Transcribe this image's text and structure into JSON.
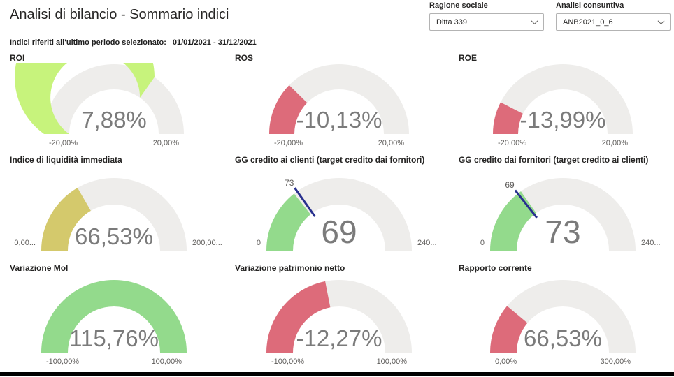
{
  "header": {
    "title": "Analisi di bilancio - Sommario indici",
    "period_label": "Indici riferiti all'ultimo periodo selezionato:",
    "period_value": "01/01/2021 - 31/12/2021"
  },
  "filters": [
    {
      "label": "Ragione sociale",
      "value": "Ditta 339",
      "icon": "chevron-down-icon"
    },
    {
      "label": "Analisi consuntiva",
      "value": "ANB2021_0_6",
      "icon": "chevron-down-icon"
    }
  ],
  "colors": {
    "track": "#eeedeb",
    "lime": "#c7f37c",
    "red": "#dd6b7a",
    "olive": "#d4c96c",
    "green": "#93da8c",
    "target_needle": "#28308e",
    "value_text": "#7b7b7b",
    "axis_text": "#5f5d5b"
  },
  "chart_data": [
    {
      "type": "gauge",
      "title": "ROI",
      "value": 7.88,
      "value_label": "7,88%",
      "min": -20,
      "max": 20,
      "min_label": "-20,00%",
      "max_label": "20,00%",
      "fill_color": "#c7f37c"
    },
    {
      "type": "gauge",
      "title": "ROS",
      "value": -10.13,
      "value_label": "-10,13%",
      "min": -20,
      "max": 20,
      "min_label": "-20,00%",
      "max_label": "20,00%",
      "fill_color": "#dd6b7a"
    },
    {
      "type": "gauge",
      "title": "ROE",
      "value": -13.99,
      "value_label": "-13,99%",
      "min": -20,
      "max": 20,
      "min_label": "-20,00%",
      "max_label": "20,00%",
      "fill_color": "#dd6b7a"
    },
    {
      "type": "gauge",
      "title": "Indice di liquidità immediata",
      "value": 66.53,
      "value_label": "66,53%",
      "min": 0,
      "max": 200,
      "min_label": "0,00...",
      "max_label": "200,00...",
      "fill_color": "#d4c96c"
    },
    {
      "type": "gauge",
      "title": "GG credito ai clienti (target credito dai fornitori)",
      "value": 69,
      "value_label": "69",
      "min": 0,
      "max": 240,
      "min_label": "0",
      "max_label": "240...",
      "fill_color": "#93da8c",
      "target": 73,
      "target_label": "73"
    },
    {
      "type": "gauge",
      "title": "GG credito dai fornitori (target credito ai clienti)",
      "value": 73,
      "value_label": "73",
      "min": 0,
      "max": 240,
      "min_label": "0",
      "max_label": "240...",
      "fill_color": "#93da8c",
      "target": 69,
      "target_label": "69"
    },
    {
      "type": "gauge",
      "title": "Variazione Mol",
      "value": 115.76,
      "value_label": "115,76%",
      "min": -100,
      "max": 100,
      "min_label": "-100,00%",
      "max_label": "100,00%",
      "fill_color": "#93da8c"
    },
    {
      "type": "gauge",
      "title": "Variazione patrimonio netto",
      "value": -12.27,
      "value_label": "-12,27%",
      "min": -100,
      "max": 100,
      "min_label": "-100,00%",
      "max_label": "100,00%",
      "fill_color": "#dd6b7a"
    },
    {
      "type": "gauge",
      "title": "Rapporto corrente",
      "value": 66.53,
      "value_label": "66,53%",
      "min": 0,
      "max": 300,
      "min_label": "0,00%",
      "max_label": "300,00%",
      "fill_color": "#dd6b7a"
    }
  ]
}
